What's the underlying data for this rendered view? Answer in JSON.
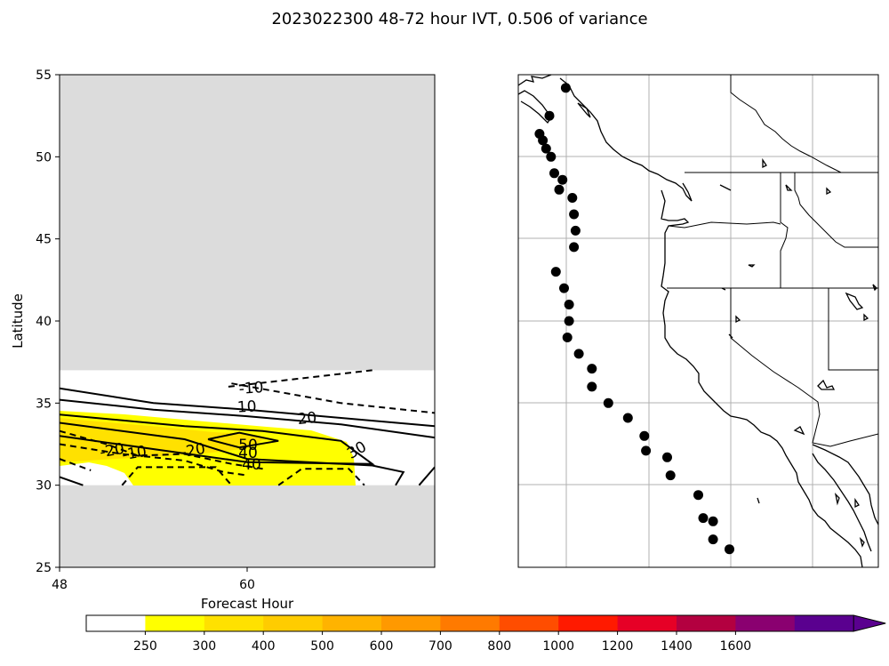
{
  "title": "2023022300 48-72 hour IVT, 0.506 of variance",
  "chart_data": [
    {
      "type": "contour",
      "panel": "left",
      "xlabel": "Forecast Hour",
      "ylabel": "Latitude",
      "xlim": [
        48,
        72
      ],
      "ylim": [
        25,
        55
      ],
      "xticks": [
        48,
        60
      ],
      "yticks": [
        25,
        30,
        35,
        40,
        45,
        50,
        55
      ],
      "masked_regions": [
        {
          "lat_from": 37,
          "lat_to": 55,
          "color": "#dcdcdc"
        },
        {
          "lat_from": 25,
          "lat_to": 30,
          "color": "#dcdcdc"
        }
      ],
      "contour_labels": [
        "-10",
        "10",
        "20",
        "30",
        "50",
        "40",
        "40",
        "-20",
        "-10",
        "-20"
      ],
      "contours": [
        {
          "level": -10,
          "dashed": true,
          "points": [
            [
              58.8,
              36.0
            ],
            [
              68.0,
              37.0
            ]
          ]
        },
        {
          "level": -10,
          "dashed": true,
          "points": [
            [
              59.0,
              36.2
            ],
            [
              66.0,
              35.0
            ],
            [
              72.0,
              34.4
            ]
          ]
        },
        {
          "level": 10,
          "dashed": false,
          "points": [
            [
              48.0,
              35.9
            ],
            [
              54.0,
              35.0
            ],
            [
              60.0,
              34.6
            ],
            [
              66.0,
              34.1
            ],
            [
              72.0,
              33.6
            ]
          ]
        },
        {
          "level": 20,
          "dashed": false,
          "points": [
            [
              48.0,
              35.2
            ],
            [
              54.0,
              34.6
            ],
            [
              60.0,
              34.2
            ],
            [
              66.0,
              33.7
            ],
            [
              72.0,
              32.9
            ]
          ]
        },
        {
          "level": 30,
          "dashed": false,
          "points": [
            [
              48.0,
              34.3
            ],
            [
              56.0,
              33.6
            ],
            [
              61.0,
              33.3
            ],
            [
              66.0,
              32.7
            ],
            [
              68.0,
              31.3
            ],
            [
              60.0,
              31.4
            ],
            [
              48.0,
              33.0
            ]
          ]
        },
        {
          "level": 50,
          "dashed": false,
          "points": [
            [
              57.5,
              32.8
            ],
            [
              59.5,
              32.3
            ],
            [
              62.0,
              32.7
            ],
            [
              59.5,
              33.2
            ],
            [
              57.5,
              32.8
            ]
          ]
        },
        {
          "level": 40,
          "dashed": false,
          "points": [
            [
              48.0,
              33.8
            ],
            [
              56.0,
              32.8
            ],
            [
              60.0,
              31.6
            ],
            [
              68.0,
              31.2
            ],
            [
              70.0,
              30.8
            ],
            [
              69.5,
              30.0
            ]
          ]
        },
        {
          "level": 30,
          "dashed": false,
          "points": [
            [
              71.0,
              30.0
            ],
            [
              72.0,
              31.1
            ]
          ]
        },
        {
          "level": -20,
          "dashed": true,
          "points": [
            [
              48.0,
              33.3
            ],
            [
              51.0,
              32.5
            ],
            [
              53.0,
              31.8
            ],
            [
              56.0,
              31.9
            ],
            [
              59.0,
              31.3
            ],
            [
              61.0,
              31.0
            ]
          ]
        },
        {
          "level": -10,
          "dashed": true,
          "points": [
            [
              48.0,
              32.5
            ],
            [
              52.0,
              31.9
            ],
            [
              56.0,
              31.5
            ],
            [
              58.5,
              30.8
            ],
            [
              60.0,
              30.6
            ]
          ]
        },
        {
          "level": -10,
          "dashed": true,
          "points": [
            [
              48.0,
              31.6
            ],
            [
              50.0,
              30.9
            ]
          ]
        },
        {
          "level": -20,
          "dashed": true,
          "points": [
            [
              52.0,
              30.0
            ],
            [
              53.0,
              31.1
            ],
            [
              58.0,
              31.1
            ],
            [
              59.0,
              30.0
            ]
          ]
        },
        {
          "level": -10,
          "dashed": true,
          "points": [
            [
              62.0,
              30.0
            ],
            [
              63.5,
              31.0
            ],
            [
              66.5,
              31.0
            ],
            [
              67.5,
              30.0
            ]
          ]
        },
        {
          "level": -10,
          "dashed": false,
          "points": [
            [
              48.0,
              30.5
            ],
            [
              49.5,
              30.0
            ]
          ]
        }
      ]
    },
    {
      "type": "map",
      "panel": "right",
      "coastline_color": "#000000",
      "grid": true,
      "markers": "filled circles along coast",
      "marker_color": "#000000",
      "points": [
        [
          52.4,
          54.2
        ],
        [
          51.4,
          52.5
        ],
        [
          50.8,
          51.4
        ],
        [
          51.0,
          51.0
        ],
        [
          51.2,
          50.5
        ],
        [
          51.5,
          50.0
        ],
        [
          51.7,
          49.0
        ],
        [
          52.2,
          48.6
        ],
        [
          52.0,
          48.0
        ],
        [
          52.8,
          47.5
        ],
        [
          52.9,
          46.5
        ],
        [
          53.0,
          45.5
        ],
        [
          52.9,
          44.5
        ],
        [
          51.8,
          43.0
        ],
        [
          52.3,
          42.0
        ],
        [
          52.6,
          41.0
        ],
        [
          52.6,
          40.0
        ],
        [
          52.5,
          39.0
        ],
        [
          53.2,
          38.0
        ],
        [
          54.0,
          37.1
        ],
        [
          54.0,
          36.0
        ],
        [
          55.0,
          35.0
        ],
        [
          56.2,
          34.1
        ],
        [
          57.2,
          33.0
        ],
        [
          57.3,
          32.1
        ],
        [
          58.6,
          31.7
        ],
        [
          58.8,
          30.6
        ],
        [
          60.5,
          29.4
        ],
        [
          60.8,
          28.0
        ],
        [
          61.4,
          27.8
        ],
        [
          61.4,
          26.7
        ],
        [
          62.4,
          26.1
        ]
      ]
    }
  ],
  "colorbar": {
    "ticks": [
      "250",
      "300",
      "400",
      "500",
      "600",
      "700",
      "800",
      "1000",
      "1200",
      "1400",
      "1600"
    ],
    "colors": [
      "#ffffff",
      "#ffff00",
      "#ffe100",
      "#ffcc00",
      "#ffb300",
      "#ff9900",
      "#ff7a00",
      "#ff4d00",
      "#ff1a00",
      "#e60026",
      "#b30040",
      "#8a0070",
      "#5a008f"
    ],
    "extend": "max"
  }
}
